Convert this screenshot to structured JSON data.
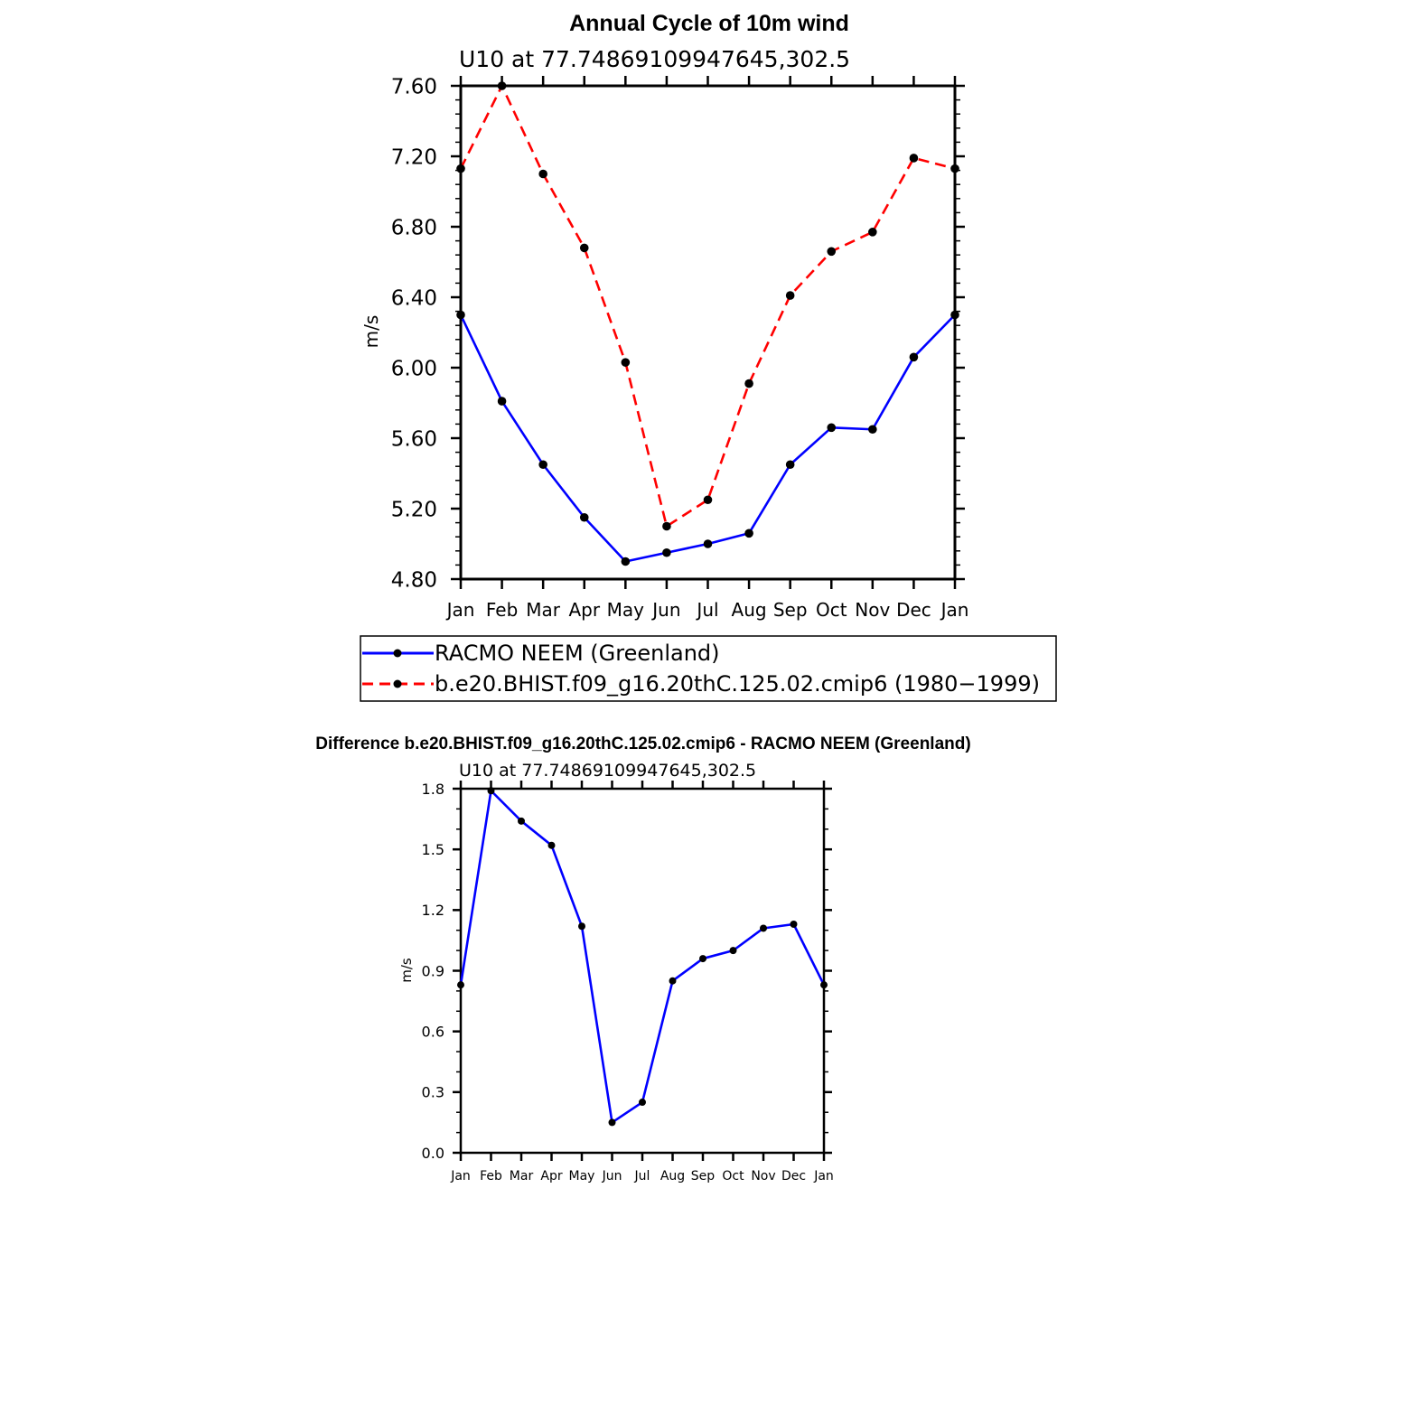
{
  "chart_data": [
    {
      "type": "line",
      "title": "Annual Cycle of 10m wind",
      "subtitle": "U10 at 77.74869109947645,302.5",
      "ylabel": "m/s",
      "xlabel": "",
      "categories": [
        "Jan",
        "Feb",
        "Mar",
        "Apr",
        "May",
        "Jun",
        "Jul",
        "Aug",
        "Sep",
        "Oct",
        "Nov",
        "Dec",
        "Jan"
      ],
      "ylim": [
        4.8,
        7.6
      ],
      "yticks": [
        "4.80",
        "5.20",
        "5.60",
        "6.00",
        "6.40",
        "6.80",
        "7.20",
        "7.60"
      ],
      "legend_position": "below",
      "series": [
        {
          "name": "RACMO NEEM (Greenland)",
          "color": "#0000ff",
          "dash": "solid",
          "values": [
            6.3,
            5.81,
            5.45,
            5.15,
            4.9,
            4.95,
            5.0,
            5.06,
            5.45,
            5.66,
            5.65,
            6.06,
            6.3
          ]
        },
        {
          "name": "b.e20.BHIST.f09_g16.20thC.125.02.cmip6 (1980−1999)",
          "color": "#ff0000",
          "dash": "dashed",
          "values": [
            7.13,
            7.6,
            7.1,
            6.68,
            6.03,
            5.1,
            5.25,
            5.91,
            6.41,
            6.66,
            6.77,
            7.19,
            7.13
          ]
        }
      ]
    },
    {
      "type": "line",
      "title": "Difference b.e20.BHIST.f09_g16.20thC.125.02.cmip6 - RACMO NEEM (Greenland)",
      "subtitle": "U10 at 77.74869109947645,302.5",
      "ylabel": "m/s",
      "xlabel": "",
      "categories": [
        "Jan",
        "Feb",
        "Mar",
        "Apr",
        "May",
        "Jun",
        "Jul",
        "Aug",
        "Sep",
        "Oct",
        "Nov",
        "Dec",
        "Jan"
      ],
      "ylim": [
        0.0,
        1.8
      ],
      "yticks": [
        "0.0",
        "0.3",
        "0.6",
        "0.9",
        "1.2",
        "1.5",
        "1.8"
      ],
      "series": [
        {
          "name": "Difference",
          "color": "#0000ff",
          "dash": "solid",
          "values": [
            0.83,
            1.79,
            1.64,
            1.52,
            1.12,
            0.15,
            0.25,
            0.85,
            0.96,
            1.0,
            1.11,
            1.13,
            0.83
          ]
        }
      ]
    }
  ]
}
